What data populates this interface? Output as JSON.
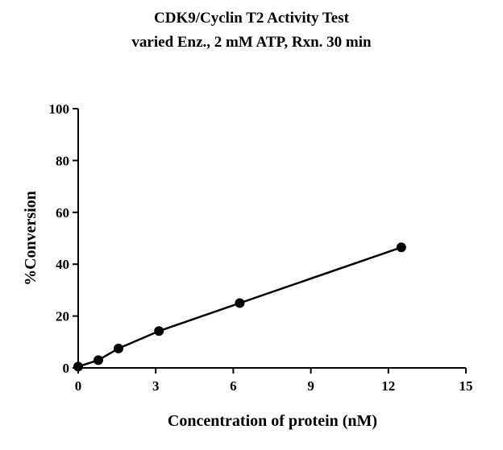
{
  "chart_data": {
    "type": "line",
    "title": "CDK9/Cyclin T2 Activity Test",
    "subtitle": "varied Enz., 2 mM ATP, Rxn. 30 min",
    "xlabel": "Concentration of protein (nM)",
    "ylabel": "%Conversion",
    "xlim": [
      0,
      15
    ],
    "ylim": [
      0,
      100
    ],
    "xticks": [
      0,
      3,
      6,
      9,
      12,
      15
    ],
    "yticks": [
      0,
      20,
      40,
      60,
      80,
      100
    ],
    "grid": false,
    "series": [
      {
        "x": [
          0,
          0.78,
          1.56,
          3.125,
          6.25,
          12.5
        ],
        "y": [
          0.5,
          3.0,
          7.5,
          14.2,
          25.0,
          46.5
        ],
        "marker": "circle",
        "color": "#000000"
      }
    ]
  }
}
